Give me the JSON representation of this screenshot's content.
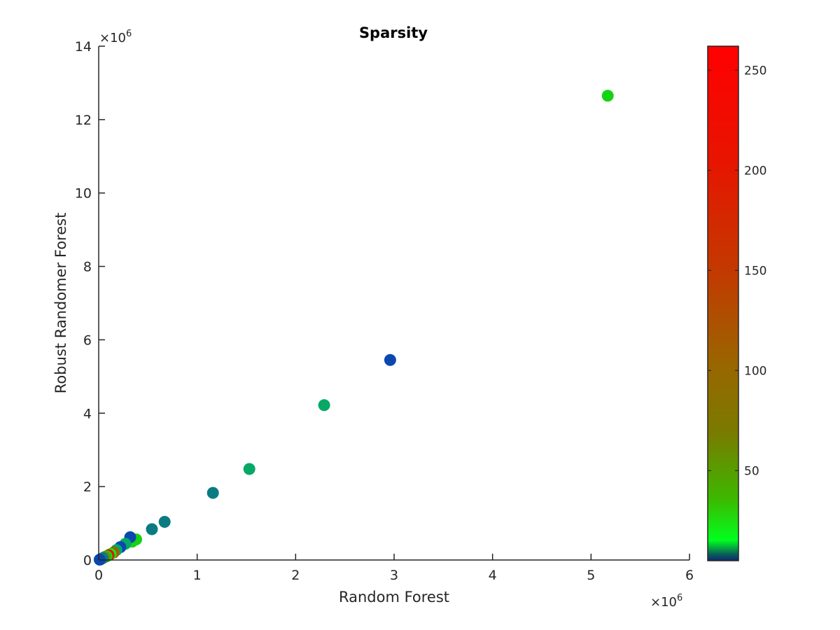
{
  "chart_data": {
    "type": "scatter",
    "title": "Sparsity",
    "xlabel": "Random Forest",
    "ylabel": "Robust Randomer Forest",
    "xlim": [
      0,
      6
    ],
    "ylim": [
      0,
      14
    ],
    "x_ticks": [
      "0",
      "1",
      "2",
      "3",
      "4",
      "5",
      "6"
    ],
    "y_ticks": [
      "0",
      "2",
      "4",
      "6",
      "8",
      "10",
      "12",
      "14"
    ],
    "x_exponent": "×10",
    "y_exponent": "×10",
    "exponent_power": "6",
    "grid": false,
    "colorbar": {
      "range": [
        5,
        262
      ],
      "ticks": [
        "50",
        "100",
        "150",
        "200",
        "250"
      ],
      "colors": [
        "#0d2a6e",
        "#00ff1e",
        "#996600",
        "#ff0000"
      ]
    },
    "points": [
      {
        "x": 5.17,
        "y": 12.65,
        "c": 15
      },
      {
        "x": 2.96,
        "y": 5.45,
        "c": 5
      },
      {
        "x": 2.29,
        "y": 4.22,
        "c": 11
      },
      {
        "x": 1.53,
        "y": 2.48,
        "c": 12
      },
      {
        "x": 1.16,
        "y": 1.83,
        "c": 8
      },
      {
        "x": 0.67,
        "y": 1.04,
        "c": 9
      },
      {
        "x": 0.54,
        "y": 0.84,
        "c": 7
      },
      {
        "x": 0.38,
        "y": 0.56,
        "c": 16
      },
      {
        "x": 0.34,
        "y": 0.5,
        "c": 14
      },
      {
        "x": 0.32,
        "y": 0.62,
        "c": 6
      },
      {
        "x": 0.27,
        "y": 0.44,
        "c": 12
      },
      {
        "x": 0.22,
        "y": 0.35,
        "c": 6
      },
      {
        "x": 0.18,
        "y": 0.27,
        "c": 12
      },
      {
        "x": 0.15,
        "y": 0.2,
        "c": 110
      },
      {
        "x": 0.12,
        "y": 0.16,
        "c": 20
      },
      {
        "x": 0.1,
        "y": 0.13,
        "c": 230
      },
      {
        "x": 0.08,
        "y": 0.1,
        "c": 13
      },
      {
        "x": 0.06,
        "y": 0.08,
        "c": 60
      },
      {
        "x": 0.04,
        "y": 0.05,
        "c": 9
      },
      {
        "x": 0.02,
        "y": 0.02,
        "c": 7
      },
      {
        "x": 0.01,
        "y": 0.01,
        "c": 5
      }
    ]
  }
}
